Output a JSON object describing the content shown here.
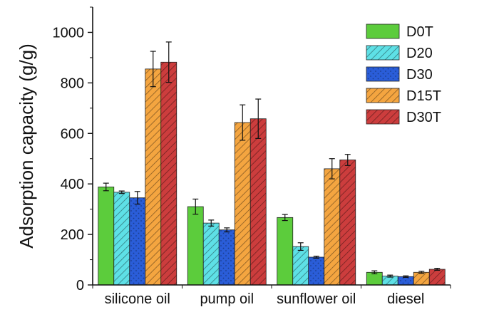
{
  "chart_data": {
    "type": "bar",
    "ylabel": "Adsorption capacity (g/g)",
    "xlabel": "",
    "ylim": [
      0,
      1100
    ],
    "yticks": [
      0,
      200,
      400,
      600,
      800,
      1000
    ],
    "grid": false,
    "legend_position": "top-right",
    "categories": [
      "silicone oil",
      "pump oil",
      "sunflower oil",
      "diesel"
    ],
    "series": [
      {
        "name": "D0T",
        "color": "#5ccc3c",
        "pattern": "solid",
        "values": [
          388,
          310,
          267,
          50
        ],
        "errors": [
          15,
          30,
          12,
          6
        ]
      },
      {
        "name": "D20",
        "color": "#5ee0e6",
        "pattern": "hatched",
        "values": [
          367,
          245,
          152,
          35
        ],
        "errors": [
          5,
          12,
          15,
          4
        ]
      },
      {
        "name": "D30",
        "color": "#2a5dd8",
        "pattern": "dotted",
        "values": [
          345,
          218,
          110,
          33
        ],
        "errors": [
          25,
          8,
          4,
          3
        ]
      },
      {
        "name": "D15T",
        "color": "#f4a540",
        "pattern": "hatched",
        "values": [
          855,
          643,
          460,
          50
        ],
        "errors": [
          70,
          70,
          40,
          4
        ]
      },
      {
        "name": "D30T",
        "color": "#cc3d3d",
        "pattern": "hatched",
        "values": [
          882,
          658,
          495,
          62
        ],
        "errors": [
          80,
          78,
          22,
          4
        ]
      }
    ]
  }
}
